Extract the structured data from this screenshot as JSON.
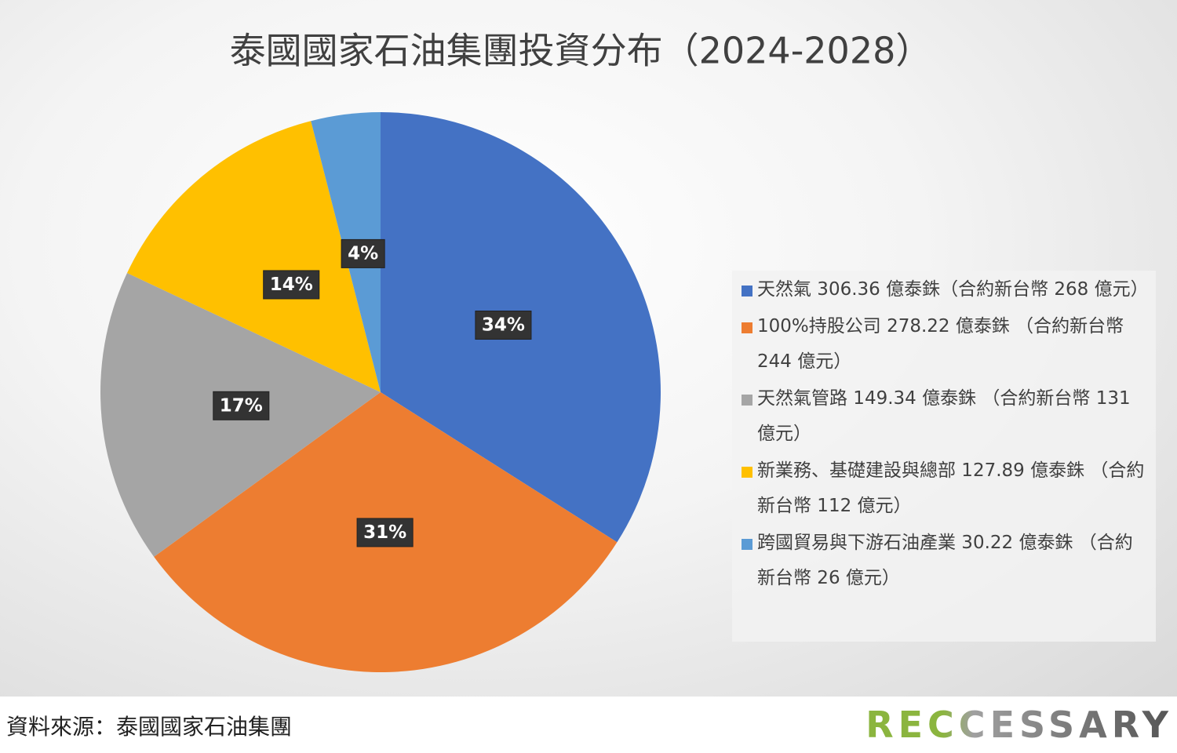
{
  "chart_data": {
    "type": "pie",
    "title": "泰國國家石油集團投資分布（2024-2028）",
    "categories": [
      "天然氣 306.36 億泰銖（合約新台幣 268 億元）",
      "100%持股公司 278.22 億泰銖 （合約新台幣 244 億元）",
      "天然氣管路 149.34 億泰銖 （合約新台幣 131 億元）",
      "新業務、基礎建設與總部 127.89 億泰銖 （合約新台幣 112 億元）",
      "跨國貿易與下游石油產業 30.22 億泰銖 （合約新台幣 26 億元）"
    ],
    "values": [
      34,
      31,
      17,
      14,
      4
    ],
    "value_labels": [
      "34%",
      "31%",
      "17%",
      "14%",
      "4%"
    ],
    "colors": [
      "#4472c4",
      "#ed7d31",
      "#a5a5a5",
      "#ffc000",
      "#5b9bd5"
    ],
    "legend": "right",
    "source": "資料來源：泰國國家石油集團",
    "brand": "RECCESSARY"
  }
}
